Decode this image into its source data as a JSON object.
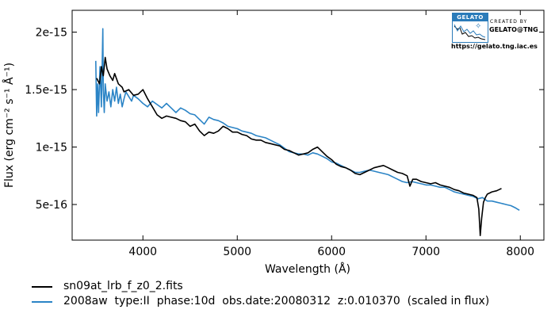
{
  "chart_data": {
    "type": "line",
    "xlabel": "Wavelength (Å)",
    "ylabel": "Flux (erg cm⁻² s⁻¹ Å⁻¹)",
    "xlim": [
      3250,
      8250
    ],
    "ylim": [
      1.9e-16,
      2.19e-15
    ],
    "x_ticks": [
      4000,
      5000,
      6000,
      7000,
      8000
    ],
    "x_tick_labels": [
      "4000",
      "5000",
      "6000",
      "7000",
      "8000"
    ],
    "y_ticks": [
      5e-16,
      1e-15,
      1.5e-15,
      2e-15
    ],
    "y_tick_labels": [
      "5e-16",
      "1e-15",
      "1.5e-15",
      "2e-15"
    ],
    "grid": false,
    "legend_position": "below",
    "series": [
      {
        "name": "sn09at_lrb_f_z0_2.fits",
        "color": "#000000",
        "x": [
          3510,
          3540,
          3560,
          3580,
          3600,
          3620,
          3650,
          3680,
          3700,
          3740,
          3780,
          3800,
          3850,
          3900,
          3950,
          4000,
          4050,
          4100,
          4150,
          4200,
          4250,
          4300,
          4350,
          4400,
          4450,
          4500,
          4550,
          4600,
          4650,
          4700,
          4750,
          4800,
          4850,
          4900,
          4950,
          5000,
          5050,
          5100,
          5150,
          5200,
          5250,
          5300,
          5350,
          5400,
          5450,
          5500,
          5550,
          5600,
          5650,
          5700,
          5750,
          5800,
          5850,
          5900,
          5950,
          6000,
          6050,
          6100,
          6150,
          6200,
          6250,
          6300,
          6350,
          6400,
          6450,
          6500,
          6550,
          6600,
          6650,
          6700,
          6750,
          6800,
          6830,
          6860,
          6900,
          6950,
          7000,
          7050,
          7100,
          7150,
          7200,
          7250,
          7300,
          7350,
          7400,
          7450,
          7500,
          7540,
          7560,
          7575,
          7590,
          7610,
          7630,
          7650,
          7700,
          7750,
          7800
        ],
        "y": [
          1.6e-15,
          1.55e-15,
          1.7e-15,
          1.62e-15,
          1.78e-15,
          1.68e-15,
          1.62e-15,
          1.58e-15,
          1.64e-15,
          1.55e-15,
          1.52e-15,
          1.48e-15,
          1.5e-15,
          1.45e-15,
          1.46e-15,
          1.5e-15,
          1.42e-15,
          1.35e-15,
          1.28e-15,
          1.25e-15,
          1.27e-15,
          1.26e-15,
          1.25e-15,
          1.23e-15,
          1.22e-15,
          1.18e-15,
          1.2e-15,
          1.14e-15,
          1.1e-15,
          1.13e-15,
          1.12e-15,
          1.14e-15,
          1.18e-15,
          1.16e-15,
          1.13e-15,
          1.13e-15,
          1.11e-15,
          1.1e-15,
          1.07e-15,
          1.06e-15,
          1.06e-15,
          1.04e-15,
          1.03e-15,
          1.02e-15,
          1.01e-15,
          9.8e-16,
          9.7e-16,
          9.5e-16,
          9.3e-16,
          9.4e-16,
          9.5e-16,
          9.8e-16,
          1e-15,
          9.6e-16,
          9.2e-16,
          8.9e-16,
          8.5e-16,
          8.3e-16,
          8.2e-16,
          8e-16,
          7.7e-16,
          7.6e-16,
          7.8e-16,
          8e-16,
          8.2e-16,
          8.3e-16,
          8.4e-16,
          8.2e-16,
          8e-16,
          7.8e-16,
          7.7e-16,
          7.5e-16,
          6.6e-16,
          7.2e-16,
          7.2e-16,
          7e-16,
          6.9e-16,
          6.8e-16,
          6.9e-16,
          6.7e-16,
          6.6e-16,
          6.5e-16,
          6.3e-16,
          6.2e-16,
          6e-16,
          5.9e-16,
          5.8e-16,
          5.6e-16,
          4.6e-16,
          2.3e-16,
          3.8e-16,
          5.2e-16,
          5.6e-16,
          5.9e-16,
          6.1e-16,
          6.2e-16,
          6.4e-16
        ]
      },
      {
        "name": "2008aw  type:II  phase:10d  obs.date:20080312  z:0.010370  (scaled in flux)",
        "color": "#2b84c6",
        "x": [
          3500,
          3510,
          3520,
          3530,
          3545,
          3560,
          3575,
          3580,
          3590,
          3600,
          3620,
          3640,
          3660,
          3680,
          3700,
          3720,
          3740,
          3760,
          3780,
          3800,
          3820,
          3850,
          3880,
          3900,
          3950,
          4000,
          4050,
          4100,
          4150,
          4200,
          4250,
          4300,
          4350,
          4400,
          4450,
          4500,
          4550,
          4600,
          4650,
          4700,
          4750,
          4800,
          4850,
          4900,
          4950,
          5000,
          5050,
          5100,
          5150,
          5200,
          5250,
          5300,
          5350,
          5400,
          5450,
          5500,
          5550,
          5600,
          5650,
          5700,
          5750,
          5800,
          5850,
          5900,
          5950,
          6000,
          6050,
          6100,
          6150,
          6200,
          6250,
          6300,
          6350,
          6400,
          6450,
          6500,
          6550,
          6600,
          6650,
          6700,
          6750,
          6800,
          6850,
          6900,
          6950,
          7000,
          7050,
          7100,
          7150,
          7200,
          7250,
          7300,
          7350,
          7400,
          7450,
          7500,
          7550,
          7600,
          7650,
          7700,
          7750,
          7800,
          7850,
          7900,
          7950,
          7990
        ],
        "y": [
          1.75e-15,
          1.27e-15,
          1.55e-15,
          1.3e-15,
          1.7e-15,
          1.35e-15,
          2.03e-15,
          1.5e-15,
          1.3e-15,
          1.55e-15,
          1.4e-15,
          1.48e-15,
          1.35e-15,
          1.5e-15,
          1.4e-15,
          1.52e-15,
          1.38e-15,
          1.46e-15,
          1.35e-15,
          1.42e-15,
          1.48e-15,
          1.44e-15,
          1.4e-15,
          1.45e-15,
          1.42e-15,
          1.38e-15,
          1.35e-15,
          1.4e-15,
          1.37e-15,
          1.34e-15,
          1.38e-15,
          1.34e-15,
          1.3e-15,
          1.34e-15,
          1.32e-15,
          1.29e-15,
          1.28e-15,
          1.24e-15,
          1.2e-15,
          1.26e-15,
          1.24e-15,
          1.23e-15,
          1.21e-15,
          1.18e-15,
          1.17e-15,
          1.16e-15,
          1.14e-15,
          1.13e-15,
          1.12e-15,
          1.1e-15,
          1.09e-15,
          1.08e-15,
          1.06e-15,
          1.04e-15,
          1.02e-15,
          9.9e-16,
          9.6e-16,
          9.5e-16,
          9.4e-16,
          9.4e-16,
          9.3e-16,
          9.5e-16,
          9.4e-16,
          9.2e-16,
          9e-16,
          8.7e-16,
          8.6e-16,
          8.4e-16,
          8.2e-16,
          8e-16,
          7.8e-16,
          7.8e-16,
          7.9e-16,
          8e-16,
          7.9e-16,
          7.8e-16,
          7.7e-16,
          7.6e-16,
          7.4e-16,
          7.2e-16,
          7e-16,
          6.9e-16,
          7e-16,
          6.9e-16,
          6.8e-16,
          6.7e-16,
          6.7e-16,
          6.6e-16,
          6.5e-16,
          6.5e-16,
          6.3e-16,
          6.1e-16,
          6e-16,
          5.9e-16,
          5.8e-16,
          5.7e-16,
          5.5e-16,
          5.6e-16,
          5.3e-16,
          5.3e-16,
          5.2e-16,
          5.1e-16,
          5e-16,
          4.9e-16,
          4.7e-16,
          4.5e-16
        ]
      }
    ]
  },
  "logo": {
    "badge_text": "GELATO",
    "created_by": "CREATED BY",
    "org": "GELATO@TNG",
    "url": "https://gelato.tng.iac.es"
  }
}
